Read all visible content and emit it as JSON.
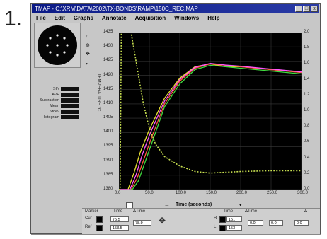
{
  "figure_number": "1.",
  "window": {
    "title": "TMAP - C:\\XRM\\DATA\\2002\\TX-BONDS\\RAMP\\150C_REC.MAP",
    "controls": [
      "_",
      "□",
      "x"
    ]
  },
  "menu": [
    "File",
    "Edit",
    "Graphs",
    "Annotate",
    "Acquisition",
    "Windows",
    "Help"
  ],
  "side_legend": {
    "rows": [
      "SIN",
      "AVE",
      "Subtraction",
      "Mean",
      "Stdev",
      "Histogram"
    ]
  },
  "plot_side_label": "TEMPERATURE °C",
  "y_left_ticks": [
    "1435",
    "1430",
    "1425",
    "1420",
    "1415",
    "1410",
    "1405",
    "1400",
    "1395",
    "1390",
    "1385",
    "1380"
  ],
  "y_right_ticks": [
    "2.0",
    "1.8",
    "1.6",
    "1.4",
    "1.2",
    "1.0",
    "0.8",
    "0.6",
    "0.4",
    "0.2",
    "0.0"
  ],
  "x_ticks": [
    "0.0",
    "50.0",
    "100.0",
    "150.0",
    "200.0",
    "250.0",
    "300.0"
  ],
  "x_axis_label": "Time (seconds)",
  "bottom_panel": {
    "col_headers": [
      "Marker",
      "Time",
      "ΔTime"
    ],
    "right_headers": [
      "Time",
      "ΔTime",
      "Δ"
    ],
    "rows": [
      {
        "label": "Cur",
        "time": "75.5",
        "dtime": "78.9"
      },
      {
        "label": "Ref",
        "time": "153.5",
        "dtime": ""
      }
    ],
    "right_rows": [
      {
        "label": "R",
        "time": "151",
        "dtime": "0.0",
        "delta": "0.0",
        "extra": "0.0"
      },
      {
        "label": "L",
        "time": "153",
        "dtime": "",
        "delta": "",
        "extra": ""
      }
    ]
  },
  "chart_data": {
    "type": "line",
    "title": "",
    "xlabel": "Time (seconds)",
    "ylabel": "TEMPERATURE °C",
    "xlim": [
      0,
      300
    ],
    "ylim": [
      1380,
      1435
    ],
    "y2lim": [
      0,
      2.0
    ],
    "grid": true,
    "series": [
      {
        "color": "#e8e030",
        "axis": "left",
        "x": [
          0,
          15,
          25,
          35,
          50,
          75,
          100,
          125,
          150,
          175,
          200,
          250,
          300
        ],
        "y": [
          1380,
          1380,
          1386,
          1393,
          1401,
          1412,
          1419,
          1423,
          1424,
          1423,
          1423,
          1422,
          1421
        ]
      },
      {
        "color": "#ff5a3c",
        "axis": "left",
        "x": [
          0,
          20,
          30,
          40,
          55,
          75,
          100,
          125,
          150,
          175,
          200,
          250,
          300
        ],
        "y": [
          1380,
          1380,
          1384,
          1390,
          1399,
          1410,
          1418,
          1422.5,
          1424,
          1423.5,
          1423,
          1422,
          1421
        ]
      },
      {
        "color": "#3fdc3f",
        "axis": "left",
        "x": [
          0,
          22,
          32,
          42,
          57,
          75,
          100,
          125,
          150,
          175,
          200,
          250,
          300
        ],
        "y": [
          1380,
          1380,
          1383,
          1389,
          1398,
          1409,
          1417,
          1422,
          1423.5,
          1423,
          1422.5,
          1421.5,
          1420.5
        ]
      },
      {
        "color": "#ff55ff",
        "axis": "left",
        "x": [
          0,
          18,
          28,
          38,
          52,
          75,
          100,
          125,
          150,
          175,
          200,
          250,
          300
        ],
        "y": [
          1380,
          1380,
          1385,
          1392,
          1400,
          1411,
          1418.5,
          1422.8,
          1424.2,
          1423.6,
          1423.2,
          1422.2,
          1421.2
        ]
      },
      {
        "color": "#c8e050",
        "axis": "right",
        "dashed": true,
        "x": [
          0,
          10,
          20,
          30,
          40,
          50,
          60,
          75,
          100,
          125,
          150,
          175,
          200,
          250,
          300
        ],
        "y": [
          2.0,
          2.0,
          2.0,
          1.55,
          1.1,
          0.78,
          0.58,
          0.42,
          0.3,
          0.23,
          0.21,
          0.22,
          0.23,
          0.24,
          0.24
        ]
      },
      {
        "color": "#c8e050",
        "axis": "right",
        "dashed": true,
        "x": [
          0,
          2,
          4,
          6
        ],
        "y": [
          0.0,
          0.0,
          2.0,
          2.0
        ]
      }
    ]
  }
}
